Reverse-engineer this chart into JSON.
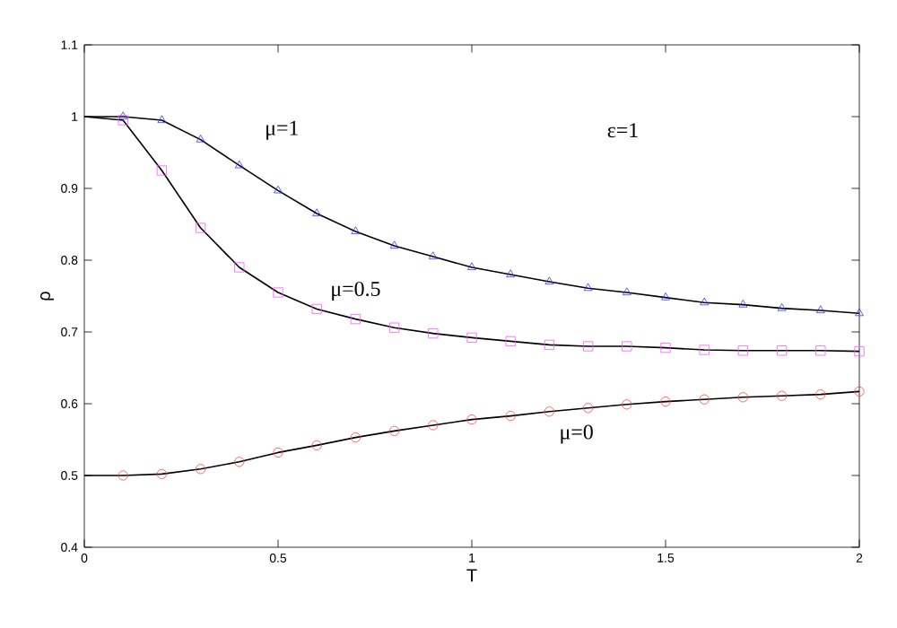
{
  "chart_data": {
    "type": "scatter",
    "xlabel": "T",
    "ylabel": "ρ",
    "xlim": [
      0,
      2
    ],
    "ylim": [
      0.4,
      1.1
    ],
    "xticks": [
      0,
      0.5,
      1,
      1.5,
      2
    ],
    "yticks": [
      0.4,
      0.5,
      0.6,
      0.7,
      0.8,
      0.9,
      1,
      1.1
    ],
    "x": [
      0.1,
      0.2,
      0.3,
      0.4,
      0.5,
      0.6,
      0.7,
      0.8,
      0.9,
      1.0,
      1.1,
      1.2,
      1.3,
      1.4,
      1.5,
      1.6,
      1.7,
      1.8,
      1.9,
      2.0
    ],
    "series": [
      {
        "type": "line",
        "color": "#000000",
        "line_style": "solid",
        "marker": "none",
        "x": [
          0,
          0.1,
          0.2,
          0.3,
          0.4,
          0.5,
          0.6,
          0.7,
          0.8,
          0.9,
          1.0,
          1.1,
          1.2,
          1.3,
          1.4,
          1.5,
          1.6,
          1.7,
          1.8,
          1.9,
          2.0
        ],
        "values": [
          1.0,
          1.0,
          0.995,
          0.968,
          0.932,
          0.897,
          0.865,
          0.84,
          0.82,
          0.805,
          0.79,
          0.78,
          0.77,
          0.761,
          0.755,
          0.748,
          0.741,
          0.738,
          0.733,
          0.73,
          0.726
        ]
      },
      {
        "type": "line",
        "color": "#000000",
        "line_style": "solid",
        "marker": "none",
        "x": [
          0,
          0.1,
          0.2,
          0.3,
          0.4,
          0.5,
          0.6,
          0.7,
          0.8,
          0.9,
          1.0,
          1.1,
          1.2,
          1.3,
          1.4,
          1.5,
          1.6,
          1.7,
          1.8,
          1.9,
          2.0
        ],
        "values": [
          1.0,
          0.995,
          0.925,
          0.845,
          0.79,
          0.755,
          0.732,
          0.718,
          0.706,
          0.698,
          0.692,
          0.687,
          0.682,
          0.68,
          0.68,
          0.678,
          0.675,
          0.674,
          0.674,
          0.674,
          0.673
        ]
      },
      {
        "type": "line",
        "color": "#000000",
        "line_style": "solid",
        "marker": "none",
        "x": [
          0,
          0.1,
          0.2,
          0.3,
          0.4,
          0.5,
          0.6,
          0.7,
          0.8,
          0.9,
          1.0,
          1.1,
          1.2,
          1.3,
          1.4,
          1.5,
          1.6,
          1.7,
          1.8,
          1.9,
          2.0
        ],
        "values": [
          0.5,
          0.5,
          0.502,
          0.509,
          0.519,
          0.532,
          0.542,
          0.553,
          0.562,
          0.57,
          0.578,
          0.583,
          0.589,
          0.594,
          0.599,
          0.603,
          0.606,
          0.609,
          0.611,
          0.613,
          0.617
        ]
      },
      {
        "color": "#3333ff",
        "marker": "triangle",
        "values": [
          1.0,
          0.995,
          0.968,
          0.932,
          0.897,
          0.865,
          0.84,
          0.82,
          0.805,
          0.79,
          0.78,
          0.77,
          0.761,
          0.755,
          0.748,
          0.741,
          0.738,
          0.733,
          0.73,
          0.726
        ]
      },
      {
        "color": "#ff55ff",
        "marker": "square",
        "values": [
          0.995,
          0.925,
          0.845,
          0.79,
          0.755,
          0.732,
          0.718,
          0.706,
          0.698,
          0.692,
          0.687,
          0.682,
          0.68,
          0.68,
          0.678,
          0.675,
          0.674,
          0.674,
          0.674,
          0.673
        ]
      },
      {
        "color": "#ff4444",
        "marker": "circle",
        "values": [
          0.5,
          0.502,
          0.509,
          0.519,
          0.532,
          0.542,
          0.553,
          0.562,
          0.57,
          0.578,
          0.583,
          0.589,
          0.594,
          0.599,
          0.603,
          0.606,
          0.609,
          0.611,
          0.613,
          0.617
        ]
      }
    ],
    "annotations": [
      "μ=1",
      "ε=1",
      "μ=0.5",
      "μ=0"
    ]
  }
}
